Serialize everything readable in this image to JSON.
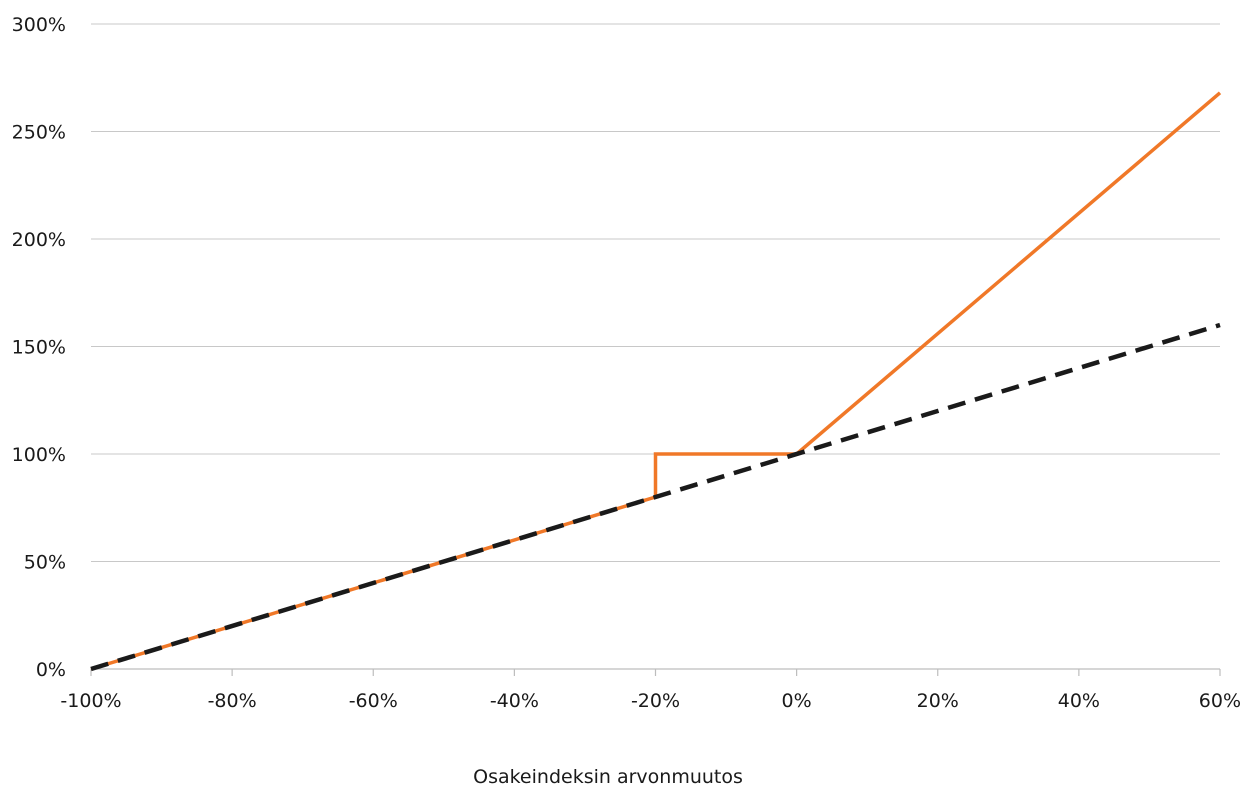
{
  "chart_data": {
    "type": "line",
    "xlabel": "Osakeindeksin arvonmuutos",
    "ylabel": "",
    "xlim": [
      -100,
      60
    ],
    "ylim": [
      0,
      300
    ],
    "x_ticks": [
      -100,
      -80,
      -60,
      -40,
      -20,
      0,
      20,
      40,
      60
    ],
    "x_tick_labels": [
      "-100%",
      "-80%",
      "-60%",
      "-40%",
      "-20%",
      "0%",
      "20%",
      "40%",
      "60%"
    ],
    "y_ticks": [
      0,
      50,
      100,
      150,
      200,
      250,
      300
    ],
    "y_tick_labels": [
      "0%",
      "50%",
      "100%",
      "150%",
      "200%",
      "250%",
      "300%"
    ],
    "grid": "horizontal",
    "legend": "none",
    "series": [
      {
        "color": "#f07828",
        "style": "solid",
        "points": [
          [
            -100,
            0
          ],
          [
            -20,
            80
          ],
          [
            -20,
            100
          ],
          [
            0,
            100
          ],
          [
            60,
            268
          ]
        ]
      },
      {
        "color": "#1a1a1a",
        "style": "dashed",
        "points": [
          [
            -100,
            0
          ],
          [
            60,
            160
          ]
        ]
      }
    ]
  }
}
